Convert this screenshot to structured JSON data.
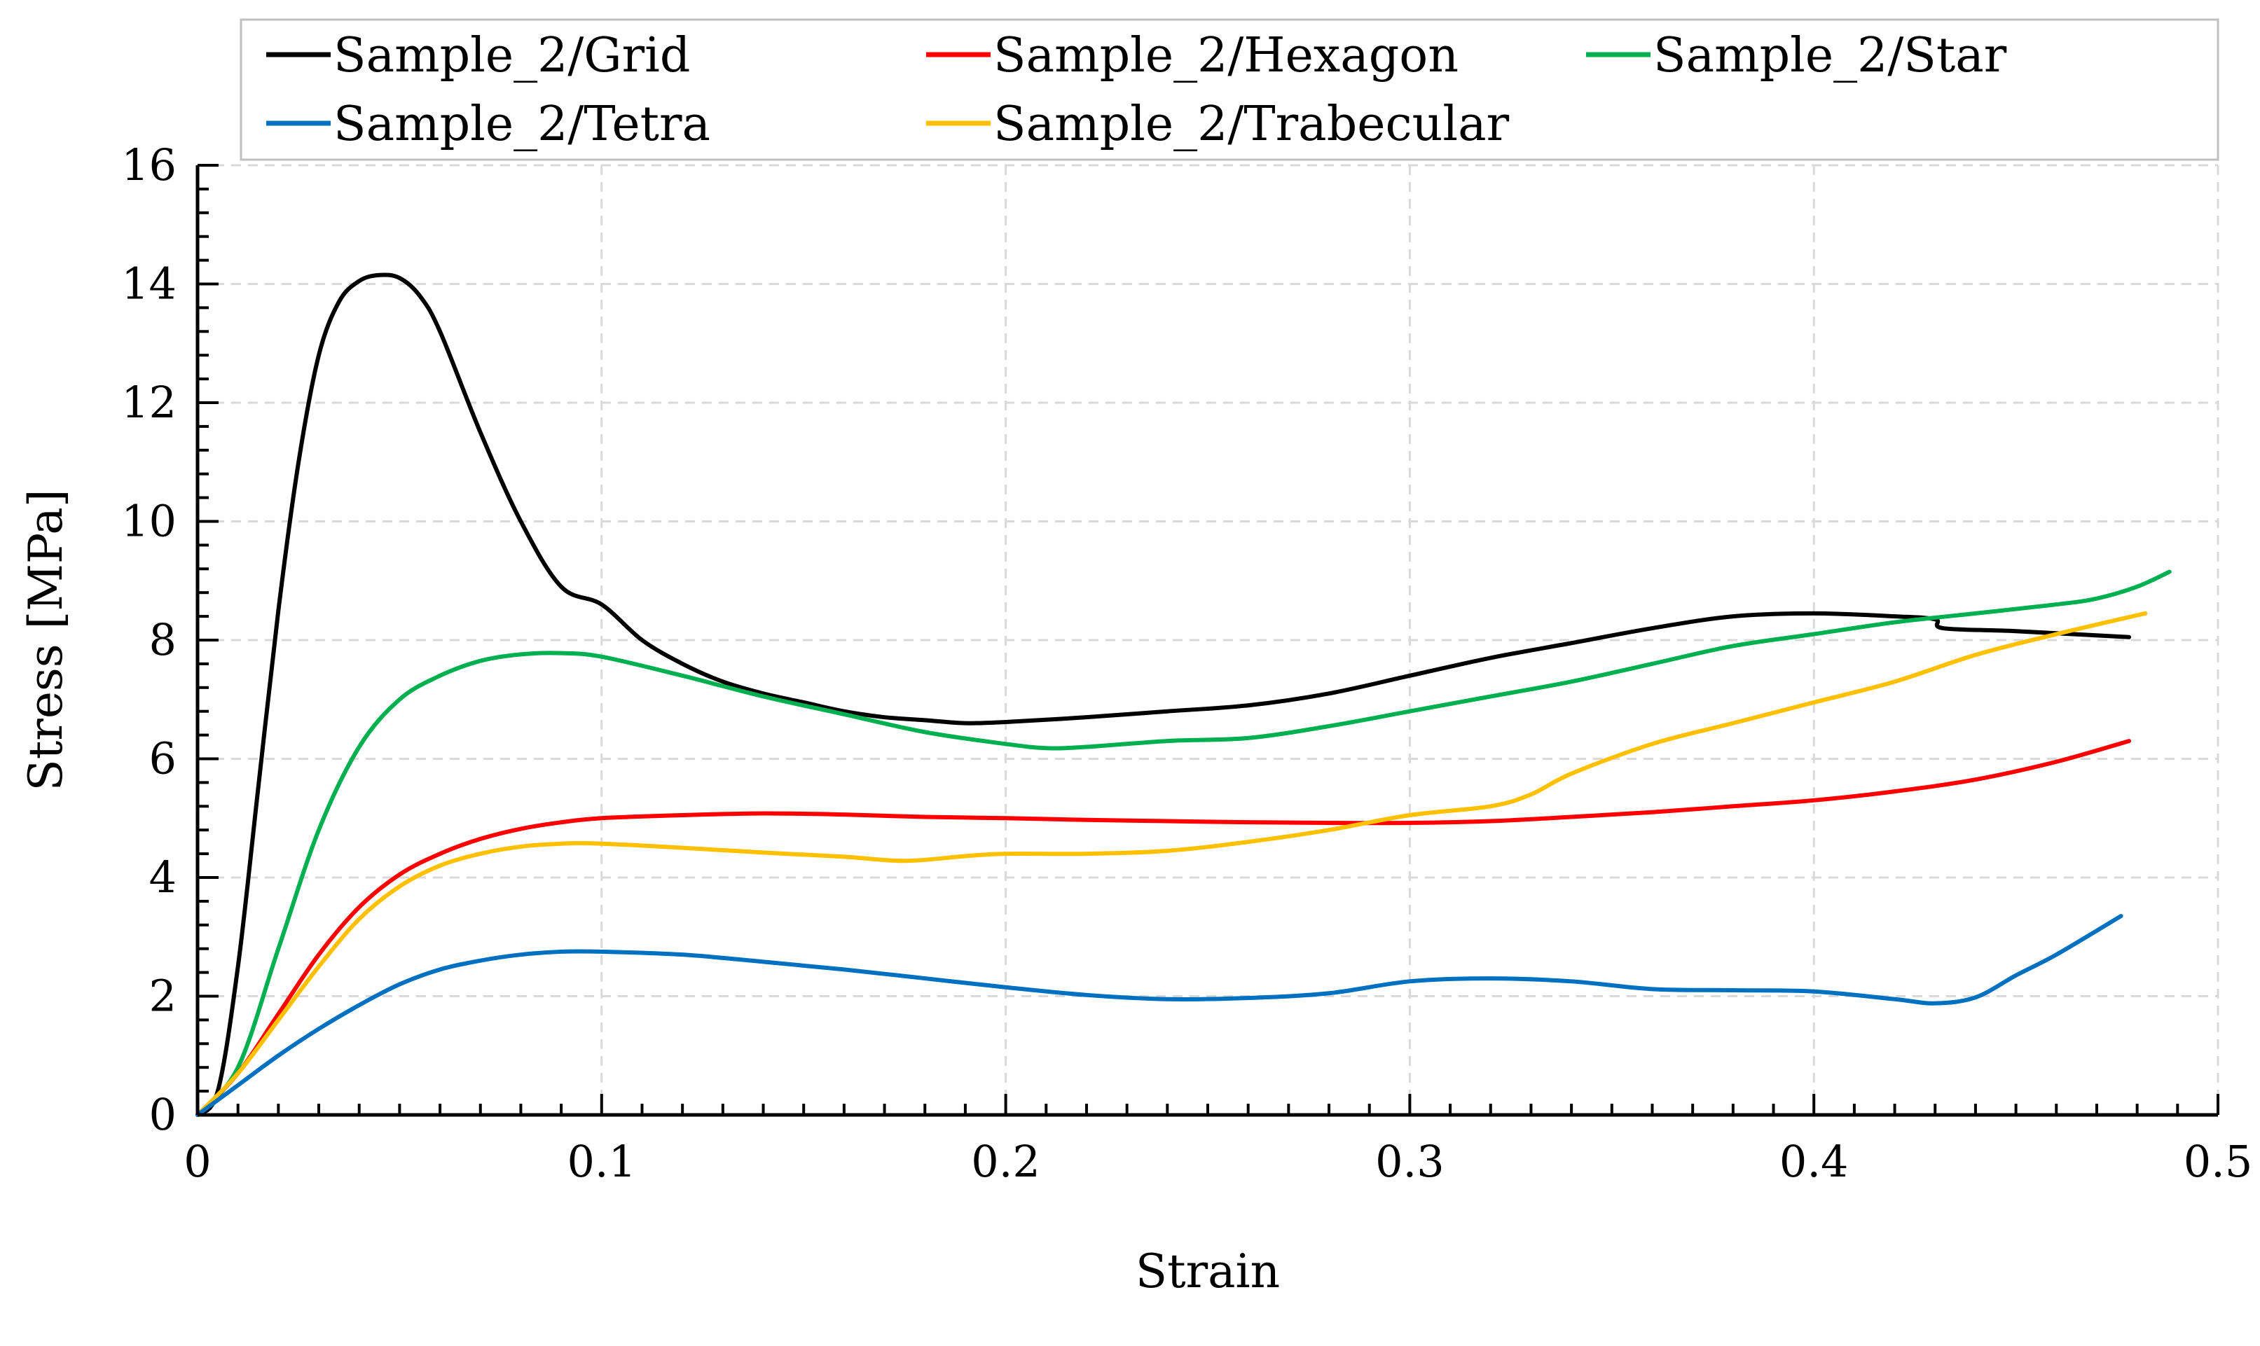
{
  "chart_data": {
    "type": "line",
    "title": "",
    "xlabel": "Strain",
    "ylabel": "Stress [MPa]",
    "xlim": [
      0,
      0.5
    ],
    "ylim": [
      0,
      16
    ],
    "xticks": [
      0,
      0.1,
      0.2,
      0.3,
      0.4,
      0.5
    ],
    "xtick_labels": [
      "0",
      "0.1",
      "0.2",
      "0.3",
      "0.4",
      "0.5"
    ],
    "yticks": [
      0,
      2,
      4,
      6,
      8,
      10,
      12,
      14,
      16
    ],
    "ytick_labels": [
      "0",
      "2",
      "4",
      "6",
      "8",
      "10",
      "12",
      "14",
      "16"
    ],
    "grid": true,
    "legend_position": "top",
    "series": [
      {
        "name": "Sample_2/Grid",
        "color": "#000000",
        "x": [
          0,
          0.005,
          0.01,
          0.015,
          0.02,
          0.025,
          0.03,
          0.035,
          0.04,
          0.045,
          0.05,
          0.055,
          0.06,
          0.07,
          0.08,
          0.09,
          0.1,
          0.11,
          0.12,
          0.13,
          0.14,
          0.15,
          0.16,
          0.17,
          0.18,
          0.19,
          0.2,
          0.22,
          0.24,
          0.26,
          0.28,
          0.3,
          0.32,
          0.34,
          0.36,
          0.38,
          0.4,
          0.42,
          0.43,
          0.432,
          0.45,
          0.478
        ],
        "y": [
          0,
          0.4,
          2.5,
          5.5,
          8.5,
          11.0,
          12.8,
          13.7,
          14.05,
          14.15,
          14.1,
          13.8,
          13.2,
          11.5,
          10.0,
          8.9,
          8.6,
          8.0,
          7.6,
          7.3,
          7.1,
          6.95,
          6.8,
          6.7,
          6.65,
          6.6,
          6.62,
          6.7,
          6.8,
          6.9,
          7.1,
          7.4,
          7.7,
          7.95,
          8.2,
          8.4,
          8.45,
          8.4,
          8.35,
          8.2,
          8.15,
          8.05
        ]
      },
      {
        "name": "Sample_2/Hexagon",
        "color": "#ff0000",
        "x": [
          0,
          0.01,
          0.02,
          0.03,
          0.04,
          0.05,
          0.06,
          0.07,
          0.08,
          0.09,
          0.1,
          0.12,
          0.14,
          0.16,
          0.18,
          0.2,
          0.22,
          0.24,
          0.26,
          0.28,
          0.3,
          0.32,
          0.34,
          0.36,
          0.38,
          0.4,
          0.42,
          0.44,
          0.46,
          0.478
        ],
        "y": [
          0,
          0.7,
          1.7,
          2.7,
          3.5,
          4.05,
          4.4,
          4.65,
          4.82,
          4.93,
          5.0,
          5.05,
          5.08,
          5.06,
          5.02,
          5.0,
          4.97,
          4.95,
          4.93,
          4.92,
          4.92,
          4.95,
          5.02,
          5.1,
          5.2,
          5.3,
          5.45,
          5.65,
          5.95,
          6.3
        ]
      },
      {
        "name": "Sample_2/Star",
        "color": "#00b050",
        "x": [
          0,
          0.01,
          0.02,
          0.03,
          0.04,
          0.05,
          0.06,
          0.07,
          0.08,
          0.09,
          0.1,
          0.12,
          0.14,
          0.16,
          0.18,
          0.2,
          0.21,
          0.22,
          0.24,
          0.26,
          0.28,
          0.3,
          0.32,
          0.34,
          0.36,
          0.38,
          0.4,
          0.42,
          0.44,
          0.46,
          0.47,
          0.48,
          0.488
        ],
        "y": [
          0,
          0.8,
          2.8,
          4.8,
          6.2,
          7.0,
          7.4,
          7.65,
          7.76,
          7.78,
          7.72,
          7.4,
          7.05,
          6.75,
          6.45,
          6.25,
          6.18,
          6.2,
          6.3,
          6.35,
          6.55,
          6.8,
          7.05,
          7.3,
          7.6,
          7.9,
          8.1,
          8.3,
          8.45,
          8.6,
          8.7,
          8.9,
          9.15
        ]
      },
      {
        "name": "Sample_2/Tetra",
        "color": "#0070c0",
        "x": [
          0,
          0.01,
          0.02,
          0.03,
          0.04,
          0.05,
          0.06,
          0.07,
          0.08,
          0.09,
          0.1,
          0.12,
          0.14,
          0.16,
          0.18,
          0.2,
          0.22,
          0.24,
          0.26,
          0.28,
          0.3,
          0.32,
          0.34,
          0.36,
          0.38,
          0.4,
          0.42,
          0.43,
          0.44,
          0.45,
          0.46,
          0.476
        ],
        "y": [
          0,
          0.5,
          1.0,
          1.45,
          1.85,
          2.2,
          2.45,
          2.6,
          2.7,
          2.75,
          2.75,
          2.7,
          2.58,
          2.45,
          2.3,
          2.15,
          2.02,
          1.95,
          1.97,
          2.05,
          2.25,
          2.3,
          2.25,
          2.12,
          2.1,
          2.08,
          1.95,
          1.88,
          1.98,
          2.35,
          2.7,
          3.35
        ]
      },
      {
        "name": "Sample_2/Trabecular",
        "color": "#ffc000",
        "x": [
          0,
          0.01,
          0.02,
          0.03,
          0.04,
          0.05,
          0.06,
          0.07,
          0.08,
          0.09,
          0.1,
          0.12,
          0.14,
          0.16,
          0.175,
          0.19,
          0.2,
          0.22,
          0.24,
          0.26,
          0.28,
          0.3,
          0.32,
          0.33,
          0.34,
          0.36,
          0.38,
          0.4,
          0.42,
          0.44,
          0.46,
          0.482
        ],
        "y": [
          0,
          0.7,
          1.6,
          2.5,
          3.3,
          3.85,
          4.2,
          4.4,
          4.52,
          4.57,
          4.57,
          4.5,
          4.42,
          4.35,
          4.28,
          4.36,
          4.4,
          4.4,
          4.45,
          4.6,
          4.8,
          5.05,
          5.2,
          5.4,
          5.75,
          6.25,
          6.6,
          6.95,
          7.3,
          7.75,
          8.1,
          8.45
        ]
      }
    ]
  }
}
